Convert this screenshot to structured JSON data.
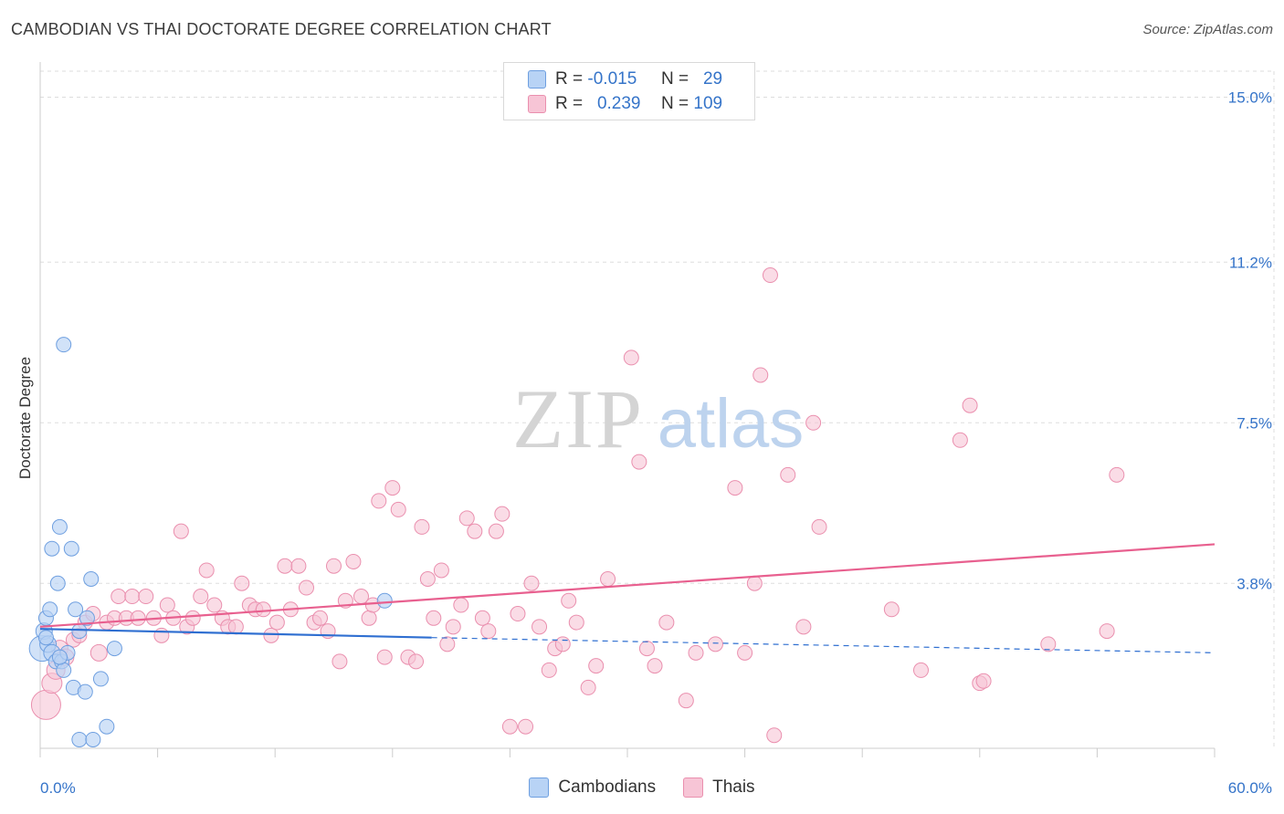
{
  "header": {
    "title": "CAMBODIAN VS THAI DOCTORATE DEGREE CORRELATION CHART",
    "source": "Source: ZipAtlas.com"
  },
  "colors": {
    "cambodians_fill": "#b8d3f5",
    "cambodians_stroke": "#6e9fe0",
    "cambodians_line": "#2f6fd1",
    "thais_fill": "#f7c5d6",
    "thais_stroke": "#ea8fae",
    "thais_line": "#e8608f",
    "tick_label": "#3574c9",
    "grid": "#dddddd"
  },
  "legend": {
    "rows": [
      {
        "r_label": "R =",
        "r_value": "-0.015",
        "n_label": "N =",
        "n_value": "29"
      },
      {
        "r_label": "R =",
        "r_value": "0.239",
        "n_label": "N =",
        "n_value": "109"
      }
    ]
  },
  "bottom_legend": {
    "cambodians": "Cambodians",
    "thais": "Thais"
  },
  "watermark": {
    "zip": "ZIP",
    "atlas": "atlas"
  },
  "chart_data": {
    "type": "scatter",
    "title": "CAMBODIAN VS THAI DOCTORATE DEGREE CORRELATION CHART",
    "xlabel": "",
    "ylabel": "Doctorate Degree",
    "xlim": [
      0,
      60
    ],
    "ylim": [
      0,
      15.6
    ],
    "y_ticks": [
      3.8,
      7.5,
      11.2,
      15.0
    ],
    "y_tick_labels": [
      "3.8%",
      "7.5%",
      "11.2%",
      "15.0%"
    ],
    "x_tick_labels": [
      "0.0%",
      "60.0%"
    ],
    "x_minor_ticks": [
      0,
      6,
      12,
      18,
      24,
      30,
      36,
      42,
      48,
      54,
      60
    ],
    "grid": true,
    "series": [
      {
        "name": "Cambodians",
        "R": -0.015,
        "N": 29,
        "trend": {
          "x0": 0,
          "y0": 2.75,
          "x1": 20,
          "y1": 2.55,
          "dashed_to_x": 60,
          "dashed_to_y": 2.2
        },
        "points": [
          {
            "x": 0.1,
            "y": 2.3,
            "s": 14
          },
          {
            "x": 0.2,
            "y": 2.7,
            "s": 9
          },
          {
            "x": 0.3,
            "y": 3.0,
            "s": 8
          },
          {
            "x": 0.4,
            "y": 2.4,
            "s": 9
          },
          {
            "x": 0.5,
            "y": 3.2,
            "s": 8
          },
          {
            "x": 0.6,
            "y": 2.2,
            "s": 9
          },
          {
            "x": 0.6,
            "y": 4.6,
            "s": 8
          },
          {
            "x": 0.8,
            "y": 2.0,
            "s": 8
          },
          {
            "x": 0.9,
            "y": 3.8,
            "s": 8
          },
          {
            "x": 1.0,
            "y": 5.1,
            "s": 8
          },
          {
            "x": 1.1,
            "y": 2.0,
            "s": 8
          },
          {
            "x": 1.2,
            "y": 9.3,
            "s": 8
          },
          {
            "x": 1.2,
            "y": 1.8,
            "s": 8
          },
          {
            "x": 1.4,
            "y": 2.2,
            "s": 8
          },
          {
            "x": 1.6,
            "y": 4.6,
            "s": 8
          },
          {
            "x": 1.7,
            "y": 1.4,
            "s": 8
          },
          {
            "x": 1.8,
            "y": 3.2,
            "s": 8
          },
          {
            "x": 2.0,
            "y": 2.7,
            "s": 8
          },
          {
            "x": 2.0,
            "y": 0.2,
            "s": 8
          },
          {
            "x": 2.3,
            "y": 1.3,
            "s": 8
          },
          {
            "x": 2.4,
            "y": 3.0,
            "s": 8
          },
          {
            "x": 2.6,
            "y": 3.9,
            "s": 8
          },
          {
            "x": 2.7,
            "y": 0.2,
            "s": 8
          },
          {
            "x": 3.1,
            "y": 1.6,
            "s": 8
          },
          {
            "x": 3.4,
            "y": 0.5,
            "s": 8
          },
          {
            "x": 3.8,
            "y": 2.3,
            "s": 8
          },
          {
            "x": 17.6,
            "y": 3.4,
            "s": 8
          },
          {
            "x": 1.0,
            "y": 2.1,
            "s": 8
          },
          {
            "x": 0.3,
            "y": 2.55,
            "s": 8
          }
        ]
      },
      {
        "name": "Thais",
        "R": 0.239,
        "N": 109,
        "trend": {
          "x0": 0,
          "y0": 2.8,
          "x1": 60,
          "y1": 4.7
        },
        "points": [
          {
            "x": 0.3,
            "y": 1.0,
            "s": 16
          },
          {
            "x": 0.6,
            "y": 1.5,
            "s": 11
          },
          {
            "x": 0.8,
            "y": 1.8,
            "s": 10
          },
          {
            "x": 1.0,
            "y": 2.3,
            "s": 9
          },
          {
            "x": 1.3,
            "y": 2.1,
            "s": 9
          },
          {
            "x": 1.7,
            "y": 2.5,
            "s": 8
          },
          {
            "x": 2.0,
            "y": 2.6,
            "s": 8
          },
          {
            "x": 2.3,
            "y": 2.9,
            "s": 8
          },
          {
            "x": 2.7,
            "y": 3.1,
            "s": 8
          },
          {
            "x": 3.0,
            "y": 2.2,
            "s": 9
          },
          {
            "x": 3.4,
            "y": 2.9,
            "s": 8
          },
          {
            "x": 3.8,
            "y": 3.0,
            "s": 8
          },
          {
            "x": 4.0,
            "y": 3.5,
            "s": 8
          },
          {
            "x": 4.4,
            "y": 3.0,
            "s": 8
          },
          {
            "x": 4.7,
            "y": 3.5,
            "s": 8
          },
          {
            "x": 5.0,
            "y": 3.0,
            "s": 8
          },
          {
            "x": 5.4,
            "y": 3.5,
            "s": 8
          },
          {
            "x": 5.8,
            "y": 3.0,
            "s": 8
          },
          {
            "x": 6.2,
            "y": 2.6,
            "s": 8
          },
          {
            "x": 6.5,
            "y": 3.3,
            "s": 8
          },
          {
            "x": 6.8,
            "y": 3.0,
            "s": 8
          },
          {
            "x": 7.2,
            "y": 5.0,
            "s": 8
          },
          {
            "x": 7.5,
            "y": 2.8,
            "s": 8
          },
          {
            "x": 7.8,
            "y": 3.0,
            "s": 8
          },
          {
            "x": 8.2,
            "y": 3.5,
            "s": 8
          },
          {
            "x": 8.5,
            "y": 4.1,
            "s": 8
          },
          {
            "x": 8.9,
            "y": 3.3,
            "s": 8
          },
          {
            "x": 9.3,
            "y": 3.0,
            "s": 8
          },
          {
            "x": 9.6,
            "y": 2.8,
            "s": 8
          },
          {
            "x": 10.0,
            "y": 2.8,
            "s": 8
          },
          {
            "x": 10.3,
            "y": 3.8,
            "s": 8
          },
          {
            "x": 10.7,
            "y": 3.3,
            "s": 8
          },
          {
            "x": 11.0,
            "y": 3.2,
            "s": 8
          },
          {
            "x": 11.4,
            "y": 3.2,
            "s": 8
          },
          {
            "x": 11.8,
            "y": 2.6,
            "s": 8
          },
          {
            "x": 12.1,
            "y": 2.9,
            "s": 8
          },
          {
            "x": 12.5,
            "y": 4.2,
            "s": 8
          },
          {
            "x": 12.8,
            "y": 3.2,
            "s": 8
          },
          {
            "x": 13.2,
            "y": 4.2,
            "s": 8
          },
          {
            "x": 13.6,
            "y": 3.7,
            "s": 8
          },
          {
            "x": 14.0,
            "y": 2.9,
            "s": 8
          },
          {
            "x": 14.3,
            "y": 3.0,
            "s": 8
          },
          {
            "x": 14.7,
            "y": 2.7,
            "s": 8
          },
          {
            "x": 15.0,
            "y": 4.2,
            "s": 8
          },
          {
            "x": 15.3,
            "y": 2.0,
            "s": 8
          },
          {
            "x": 15.6,
            "y": 3.4,
            "s": 8
          },
          {
            "x": 16.0,
            "y": 4.3,
            "s": 8
          },
          {
            "x": 16.4,
            "y": 3.5,
            "s": 8
          },
          {
            "x": 16.8,
            "y": 3.0,
            "s": 8
          },
          {
            "x": 17.0,
            "y": 3.3,
            "s": 8
          },
          {
            "x": 17.3,
            "y": 5.7,
            "s": 8
          },
          {
            "x": 17.6,
            "y": 2.1,
            "s": 8
          },
          {
            "x": 18.0,
            "y": 6.0,
            "s": 8
          },
          {
            "x": 18.3,
            "y": 5.5,
            "s": 8
          },
          {
            "x": 18.8,
            "y": 2.1,
            "s": 8
          },
          {
            "x": 19.2,
            "y": 2.0,
            "s": 8
          },
          {
            "x": 19.5,
            "y": 5.1,
            "s": 8
          },
          {
            "x": 19.8,
            "y": 3.9,
            "s": 8
          },
          {
            "x": 20.1,
            "y": 3.0,
            "s": 8
          },
          {
            "x": 20.5,
            "y": 4.1,
            "s": 8
          },
          {
            "x": 20.8,
            "y": 2.4,
            "s": 8
          },
          {
            "x": 21.1,
            "y": 2.8,
            "s": 8
          },
          {
            "x": 21.5,
            "y": 3.3,
            "s": 8
          },
          {
            "x": 21.8,
            "y": 5.3,
            "s": 8
          },
          {
            "x": 22.2,
            "y": 5.0,
            "s": 8
          },
          {
            "x": 22.6,
            "y": 3.0,
            "s": 8
          },
          {
            "x": 22.9,
            "y": 2.7,
            "s": 8
          },
          {
            "x": 23.3,
            "y": 5.0,
            "s": 8
          },
          {
            "x": 23.6,
            "y": 5.4,
            "s": 8
          },
          {
            "x": 24.0,
            "y": 0.5,
            "s": 8
          },
          {
            "x": 24.4,
            "y": 3.1,
            "s": 8
          },
          {
            "x": 24.8,
            "y": 0.5,
            "s": 8
          },
          {
            "x": 25.1,
            "y": 3.8,
            "s": 8
          },
          {
            "x": 25.5,
            "y": 2.8,
            "s": 8
          },
          {
            "x": 26.0,
            "y": 1.8,
            "s": 8
          },
          {
            "x": 26.3,
            "y": 2.3,
            "s": 8
          },
          {
            "x": 26.7,
            "y": 2.4,
            "s": 8
          },
          {
            "x": 27.0,
            "y": 3.4,
            "s": 8
          },
          {
            "x": 27.4,
            "y": 2.9,
            "s": 8
          },
          {
            "x": 28.0,
            "y": 1.4,
            "s": 8
          },
          {
            "x": 28.4,
            "y": 1.9,
            "s": 8
          },
          {
            "x": 29.0,
            "y": 3.9,
            "s": 8
          },
          {
            "x": 30.2,
            "y": 9.0,
            "s": 8
          },
          {
            "x": 30.6,
            "y": 6.6,
            "s": 8
          },
          {
            "x": 31.0,
            "y": 2.3,
            "s": 8
          },
          {
            "x": 31.4,
            "y": 1.9,
            "s": 8
          },
          {
            "x": 32.0,
            "y": 2.9,
            "s": 8
          },
          {
            "x": 33.0,
            "y": 1.1,
            "s": 8
          },
          {
            "x": 33.5,
            "y": 2.2,
            "s": 8
          },
          {
            "x": 34.5,
            "y": 2.4,
            "s": 8
          },
          {
            "x": 35.5,
            "y": 6.0,
            "s": 8
          },
          {
            "x": 36.5,
            "y": 3.8,
            "s": 8
          },
          {
            "x": 36.8,
            "y": 8.6,
            "s": 8
          },
          {
            "x": 37.3,
            "y": 10.9,
            "s": 8
          },
          {
            "x": 37.5,
            "y": 0.3,
            "s": 8
          },
          {
            "x": 38.2,
            "y": 6.3,
            "s": 8
          },
          {
            "x": 39.0,
            "y": 2.8,
            "s": 8
          },
          {
            "x": 39.5,
            "y": 7.5,
            "s": 8
          },
          {
            "x": 39.8,
            "y": 5.1,
            "s": 8
          },
          {
            "x": 43.5,
            "y": 3.2,
            "s": 8
          },
          {
            "x": 45.0,
            "y": 1.8,
            "s": 8
          },
          {
            "x": 47.0,
            "y": 7.1,
            "s": 8
          },
          {
            "x": 47.5,
            "y": 7.9,
            "s": 8
          },
          {
            "x": 48.0,
            "y": 1.5,
            "s": 8
          },
          {
            "x": 51.5,
            "y": 2.4,
            "s": 8
          },
          {
            "x": 54.5,
            "y": 2.7,
            "s": 8
          },
          {
            "x": 55.0,
            "y": 6.3,
            "s": 8
          },
          {
            "x": 36.0,
            "y": 2.2,
            "s": 8
          },
          {
            "x": 48.2,
            "y": 1.55,
            "s": 8
          }
        ]
      }
    ]
  }
}
